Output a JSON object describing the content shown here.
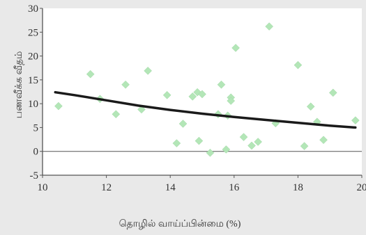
{
  "chart_data": {
    "type": "scatter",
    "xlabel": "தொழில் வாய்ப்பின்மை (%)",
    "ylabel": "பணவீக்க வீதம்",
    "xlim": [
      10,
      20
    ],
    "ylim": [
      -5,
      30
    ],
    "xticks": [
      10,
      12,
      14,
      16,
      18,
      20
    ],
    "yticks": [
      -5,
      0,
      5,
      10,
      15,
      20,
      25,
      30
    ],
    "grid": false,
    "points": [
      {
        "x": 10.5,
        "y": 9.5
      },
      {
        "x": 11.5,
        "y": 16.2
      },
      {
        "x": 11.8,
        "y": 11.0
      },
      {
        "x": 12.3,
        "y": 7.8
      },
      {
        "x": 12.6,
        "y": 14.0
      },
      {
        "x": 13.1,
        "y": 8.8
      },
      {
        "x": 13.3,
        "y": 16.9
      },
      {
        "x": 13.9,
        "y": 11.8
      },
      {
        "x": 14.2,
        "y": 1.7
      },
      {
        "x": 14.4,
        "y": 5.8
      },
      {
        "x": 14.7,
        "y": 11.5
      },
      {
        "x": 14.85,
        "y": 12.4
      },
      {
        "x": 14.9,
        "y": 2.2
      },
      {
        "x": 15.0,
        "y": 12.0
      },
      {
        "x": 15.25,
        "y": -0.3
      },
      {
        "x": 15.5,
        "y": 7.8
      },
      {
        "x": 15.6,
        "y": 14.0
      },
      {
        "x": 15.75,
        "y": 0.4
      },
      {
        "x": 15.8,
        "y": 7.5
      },
      {
        "x": 15.9,
        "y": 11.3
      },
      {
        "x": 15.9,
        "y": 10.6
      },
      {
        "x": 16.05,
        "y": 21.7
      },
      {
        "x": 16.3,
        "y": 3.0
      },
      {
        "x": 16.55,
        "y": 1.2
      },
      {
        "x": 16.75,
        "y": 2.0
      },
      {
        "x": 17.1,
        "y": 26.2
      },
      {
        "x": 17.3,
        "y": 5.9
      },
      {
        "x": 18.0,
        "y": 18.1
      },
      {
        "x": 18.2,
        "y": 1.1
      },
      {
        "x": 18.4,
        "y": 9.4
      },
      {
        "x": 18.6,
        "y": 6.2
      },
      {
        "x": 18.8,
        "y": 2.4
      },
      {
        "x": 19.1,
        "y": 12.3
      },
      {
        "x": 19.8,
        "y": 6.5
      }
    ],
    "trend_line": {
      "x": [
        10.4,
        11.0,
        12.0,
        13.0,
        14.0,
        15.0,
        16.0,
        17.0,
        18.0,
        19.0,
        19.8
      ],
      "y": [
        12.4,
        11.8,
        10.7,
        9.6,
        8.7,
        7.9,
        7.2,
        6.6,
        6.0,
        5.4,
        5.0
      ]
    },
    "colors": {
      "point": "#b3e6b7",
      "trend": "#1a1a1a",
      "axis": "#555555",
      "plot_bg": "#ffffff",
      "page_bg": "#e9e9e9"
    }
  }
}
